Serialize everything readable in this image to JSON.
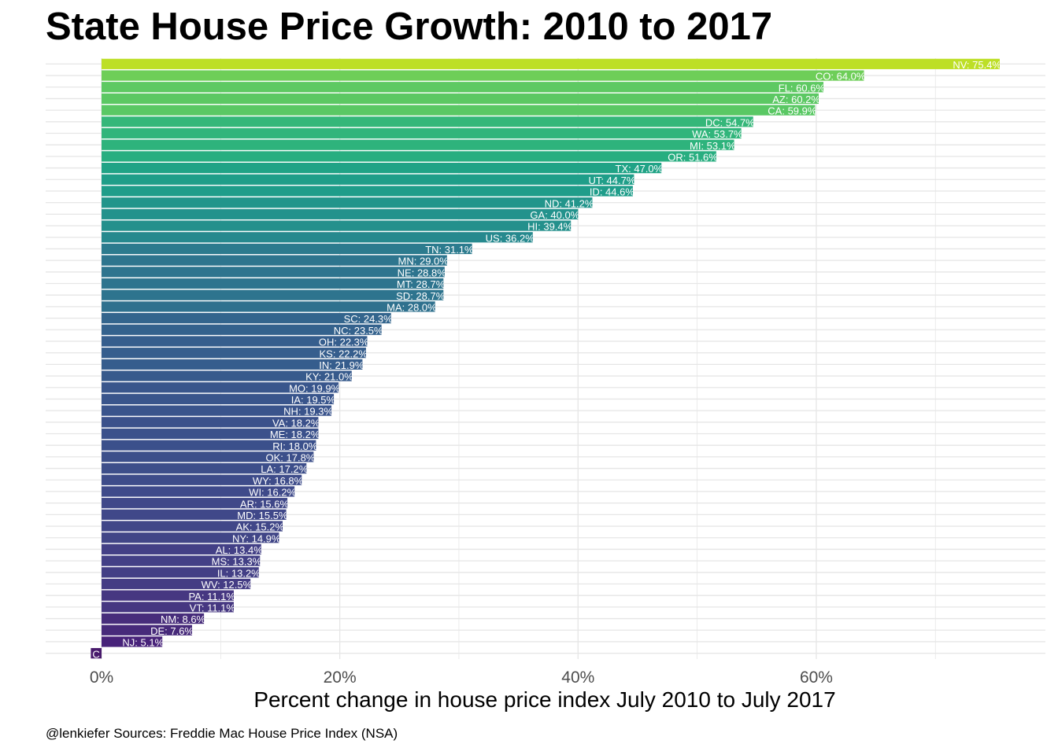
{
  "chart_data": {
    "type": "bar",
    "orientation": "horizontal",
    "title": "State House Price Growth: 2010 to 2017",
    "xlabel": "Percent change in house price index July 2010 to July 2017",
    "ylabel": "",
    "caption": "@lenkiefer Sources: Freddie Mac House Price Index (NSA)",
    "xlim": [
      -5,
      79
    ],
    "xticks": [
      0,
      20,
      40,
      60
    ],
    "xtick_labels": [
      "0%",
      "20%",
      "40%",
      "60%"
    ],
    "grid": true,
    "legend": "none",
    "colormap": "viridis",
    "series": [
      {
        "state": "NV",
        "value": 75.4,
        "label": "NV: 75.4%",
        "color": "#bddf26"
      },
      {
        "state": "CO",
        "value": 64.0,
        "label": "CO: 64.0%",
        "color": "#6ece58"
      },
      {
        "state": "FL",
        "value": 60.6,
        "label": "FL: 60.6%",
        "color": "#5ec962"
      },
      {
        "state": "AZ",
        "value": 60.2,
        "label": "AZ: 60.2%",
        "color": "#5cc863"
      },
      {
        "state": "CA",
        "value": 59.9,
        "label": "CA: 59.9%",
        "color": "#5ac864"
      },
      {
        "state": "DC",
        "value": 54.7,
        "label": "DC: 54.7%",
        "color": "#35b779"
      },
      {
        "state": "WA",
        "value": 53.7,
        "label": "WA: 53.7%",
        "color": "#31b57b"
      },
      {
        "state": "MI",
        "value": 53.1,
        "label": "MI: 53.1%",
        "color": "#2eb37c"
      },
      {
        "state": "OR",
        "value": 51.6,
        "label": "OR: 51.6%",
        "color": "#28ae80"
      },
      {
        "state": "TX",
        "value": 47.0,
        "label": "TX: 47.0%",
        "color": "#20a386"
      },
      {
        "state": "UT",
        "value": 44.7,
        "label": "UT: 44.7%",
        "color": "#1f9e89"
      },
      {
        "state": "ID",
        "value": 44.6,
        "label": "ID: 44.6%",
        "color": "#1f9d8a"
      },
      {
        "state": "ND",
        "value": 41.2,
        "label": "ND: 41.2%",
        "color": "#22958b"
      },
      {
        "state": "GA",
        "value": 40.0,
        "label": "GA: 40.0%",
        "color": "#23928c"
      },
      {
        "state": "HI",
        "value": 39.4,
        "label": "HI: 39.4%",
        "color": "#24908c"
      },
      {
        "state": "US",
        "value": 36.2,
        "label": "US: 36.2%",
        "color": "#26898e"
      },
      {
        "state": "TN",
        "value": 31.1,
        "label": "TN: 31.1%",
        "color": "#2c7b8e"
      },
      {
        "state": "MN",
        "value": 29.0,
        "label": "MN: 29.0%",
        "color": "#2e758e"
      },
      {
        "state": "NE",
        "value": 28.8,
        "label": "NE: 28.8%",
        "color": "#2e748e"
      },
      {
        "state": "MT",
        "value": 28.7,
        "label": "MT: 28.7%",
        "color": "#2e748e"
      },
      {
        "state": "SD",
        "value": 28.7,
        "label": "SD: 28.7%",
        "color": "#2e748e"
      },
      {
        "state": "MA",
        "value": 28.0,
        "label": "MA: 28.0%",
        "color": "#2f718e"
      },
      {
        "state": "SC",
        "value": 24.3,
        "label": "SC: 24.3%",
        "color": "#33658d"
      },
      {
        "state": "NC",
        "value": 23.5,
        "label": "NC: 23.5%",
        "color": "#34628d"
      },
      {
        "state": "OH",
        "value": 22.3,
        "label": "OH: 22.3%",
        "color": "#365e8d"
      },
      {
        "state": "KS",
        "value": 22.2,
        "label": "KS: 22.2%",
        "color": "#365e8d"
      },
      {
        "state": "IN",
        "value": 21.9,
        "label": "IN: 21.9%",
        "color": "#365d8d"
      },
      {
        "state": "KY",
        "value": 21.0,
        "label": "KY: 21.0%",
        "color": "#375a8c"
      },
      {
        "state": "MO",
        "value": 19.9,
        "label": "MO: 19.9%",
        "color": "#39568c"
      },
      {
        "state": "IA",
        "value": 19.5,
        "label": "IA: 19.5%",
        "color": "#39558c"
      },
      {
        "state": "NH",
        "value": 19.3,
        "label": "NH: 19.3%",
        "color": "#3a548c"
      },
      {
        "state": "VA",
        "value": 18.2,
        "label": "VA: 18.2%",
        "color": "#3b518b"
      },
      {
        "state": "ME",
        "value": 18.2,
        "label": "ME: 18.2%",
        "color": "#3b518b"
      },
      {
        "state": "RI",
        "value": 18.0,
        "label": "RI: 18.0%",
        "color": "#3b508b"
      },
      {
        "state": "OK",
        "value": 17.8,
        "label": "OK: 17.8%",
        "color": "#3c4f8a"
      },
      {
        "state": "LA",
        "value": 17.2,
        "label": "LA: 17.2%",
        "color": "#3d4e8a"
      },
      {
        "state": "WY",
        "value": 16.8,
        "label": "WY: 16.8%",
        "color": "#3e4c8a"
      },
      {
        "state": "WI",
        "value": 16.2,
        "label": "WI: 16.2%",
        "color": "#3f4a8a"
      },
      {
        "state": "AR",
        "value": 15.6,
        "label": "AR: 15.6%",
        "color": "#404889"
      },
      {
        "state": "MD",
        "value": 15.5,
        "label": "MD: 15.5%",
        "color": "#404889"
      },
      {
        "state": "AK",
        "value": 15.2,
        "label": "AK: 15.2%",
        "color": "#414788"
      },
      {
        "state": "NY",
        "value": 14.9,
        "label": "NY: 14.9%",
        "color": "#414687"
      },
      {
        "state": "AL",
        "value": 13.4,
        "label": "AL: 13.4%",
        "color": "#434086"
      },
      {
        "state": "MS",
        "value": 13.3,
        "label": "MS: 13.3%",
        "color": "#434086"
      },
      {
        "state": "IL",
        "value": 13.2,
        "label": "IL: 13.2%",
        "color": "#433f85"
      },
      {
        "state": "WV",
        "value": 12.5,
        "label": "WV: 12.5%",
        "color": "#443c84"
      },
      {
        "state": "PA",
        "value": 11.1,
        "label": "PA: 11.1%",
        "color": "#463781"
      },
      {
        "state": "VT",
        "value": 11.1,
        "label": "VT: 11.1%",
        "color": "#463781"
      },
      {
        "state": "NM",
        "value": 8.6,
        "label": "NM: 8.6%",
        "color": "#472d7b"
      },
      {
        "state": "DE",
        "value": 7.6,
        "label": "DE: 7.6%",
        "color": "#472a7a"
      },
      {
        "state": "NJ",
        "value": 5.1,
        "label": "NJ: 5.1%",
        "color": "#48237a"
      },
      {
        "state": "C",
        "value": -0.9,
        "label": "C",
        "color": "#481a6c"
      }
    ]
  }
}
